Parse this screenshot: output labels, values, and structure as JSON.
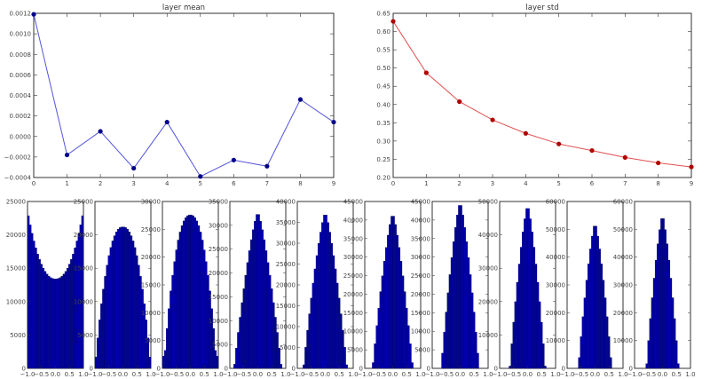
{
  "chart_data": [
    {
      "id": "layer_mean",
      "type": "line",
      "title": "layer mean",
      "xlabel": "",
      "ylabel": "",
      "x": [
        0,
        1,
        2,
        3,
        4,
        5,
        6,
        7,
        8,
        9
      ],
      "values": [
        0.00119,
        -0.00018,
        5e-05,
        -0.00031,
        0.00014,
        -0.00039,
        -0.00023,
        -0.00029,
        0.00036,
        0.00014
      ],
      "xlim": [
        0,
        9
      ],
      "ylim": [
        -0.0004,
        0.0012
      ],
      "xticks": [
        "0",
        "1",
        "2",
        "3",
        "4",
        "5",
        "6",
        "7",
        "8",
        "9"
      ],
      "yticks": [
        "-0.0004",
        "-0.0002",
        "0.0000",
        "0.0002",
        "0.0004",
        "0.0006",
        "0.0008",
        "0.0010",
        "0.0012"
      ],
      "line_color": "#5555dd",
      "marker_color": "#00008b",
      "grid": false,
      "legend": "none"
    },
    {
      "id": "layer_std",
      "type": "line",
      "title": "layer std",
      "xlabel": "",
      "ylabel": "",
      "x": [
        0,
        1,
        2,
        3,
        4,
        5,
        6,
        7,
        8,
        9
      ],
      "values": [
        0.628,
        0.487,
        0.408,
        0.358,
        0.321,
        0.292,
        0.274,
        0.255,
        0.24,
        0.229
      ],
      "xlim": [
        0,
        9
      ],
      "ylim": [
        0.2,
        0.65
      ],
      "xticks": [
        "0",
        "1",
        "2",
        "3",
        "4",
        "5",
        "6",
        "7",
        "8",
        "9"
      ],
      "yticks": [
        "0.20",
        "0.25",
        "0.30",
        "0.35",
        "0.40",
        "0.45",
        "0.50",
        "0.55",
        "0.60",
        "0.65"
      ],
      "line_color": "#e05050",
      "marker_color": "#b00000",
      "grid": false,
      "legend": "none"
    },
    {
      "id": "layer_histograms",
      "type": "bar",
      "title": "",
      "description": "10 histograms of layer activations, x range -1.0 to 1.0",
      "xticks": [
        "-1.0",
        "-0.5",
        "0.0",
        "0.5",
        "1.0"
      ],
      "xlim": [
        -1.0,
        1.0
      ],
      "bar_color": "#0000aa",
      "panels": [
        {
          "layer": 0,
          "ylim": [
            0,
            25000
          ],
          "yticks": [
            "0",
            "5000",
            "10000",
            "15000",
            "20000",
            "25000"
          ],
          "peak": 23600,
          "shape": "u",
          "center_value": 13400,
          "spread": 1.0
        },
        {
          "layer": 1,
          "ylim": [
            0,
            25000
          ],
          "yticks": [
            "0",
            "5000",
            "10000",
            "15000",
            "20000",
            "25000"
          ],
          "peak": 21200,
          "shape": "dome",
          "spread": 1.0
        },
        {
          "layer": 2,
          "ylim": [
            0,
            30000
          ],
          "yticks": [
            "0",
            "5000",
            "10000",
            "15000",
            "20000",
            "25000",
            "30000"
          ],
          "peak": 27600,
          "shape": "dome",
          "spread": 0.95
        },
        {
          "layer": 3,
          "ylim": [
            0,
            35000
          ],
          "yticks": [
            "0",
            "5000",
            "10000",
            "15000",
            "20000",
            "25000",
            "30000",
            "35000"
          ],
          "peak": 32700,
          "shape": "bell",
          "spread": 0.85
        },
        {
          "layer": 4,
          "ylim": [
            0,
            40000
          ],
          "yticks": [
            "0",
            "5000",
            "10000",
            "15000",
            "20000",
            "25000",
            "30000",
            "35000",
            "40000"
          ],
          "peak": 37300,
          "shape": "bell",
          "spread": 0.78
        },
        {
          "layer": 5,
          "ylim": [
            0,
            45000
          ],
          "yticks": [
            "0",
            "5000",
            "10000",
            "15000",
            "20000",
            "25000",
            "30000",
            "35000",
            "40000",
            "45000"
          ],
          "peak": 41700,
          "shape": "bell",
          "spread": 0.72
        },
        {
          "layer": 6,
          "ylim": [
            0,
            45000
          ],
          "yticks": [
            "0",
            "5000",
            "10000",
            "15000",
            "20000",
            "25000",
            "30000",
            "35000",
            "40000",
            "45000"
          ],
          "peak": 44700,
          "shape": "bell",
          "spread": 0.68
        },
        {
          "layer": 7,
          "ylim": [
            0,
            50000
          ],
          "yticks": [
            "0",
            "10000",
            "20000",
            "30000",
            "40000",
            "50000"
          ],
          "peak": 48800,
          "shape": "bell",
          "spread": 0.64
        },
        {
          "layer": 8,
          "ylim": [
            0,
            60000
          ],
          "yticks": [
            "0",
            "10000",
            "20000",
            "30000",
            "40000",
            "50000",
            "60000"
          ],
          "peak": 52200,
          "shape": "bell",
          "spread": 0.6
        },
        {
          "layer": 9,
          "ylim": [
            0,
            60000
          ],
          "yticks": [
            "0",
            "10000",
            "20000",
            "30000",
            "40000",
            "50000",
            "60000"
          ],
          "peak": 55000,
          "shape": "bell",
          "spread": 0.58
        }
      ]
    }
  ]
}
